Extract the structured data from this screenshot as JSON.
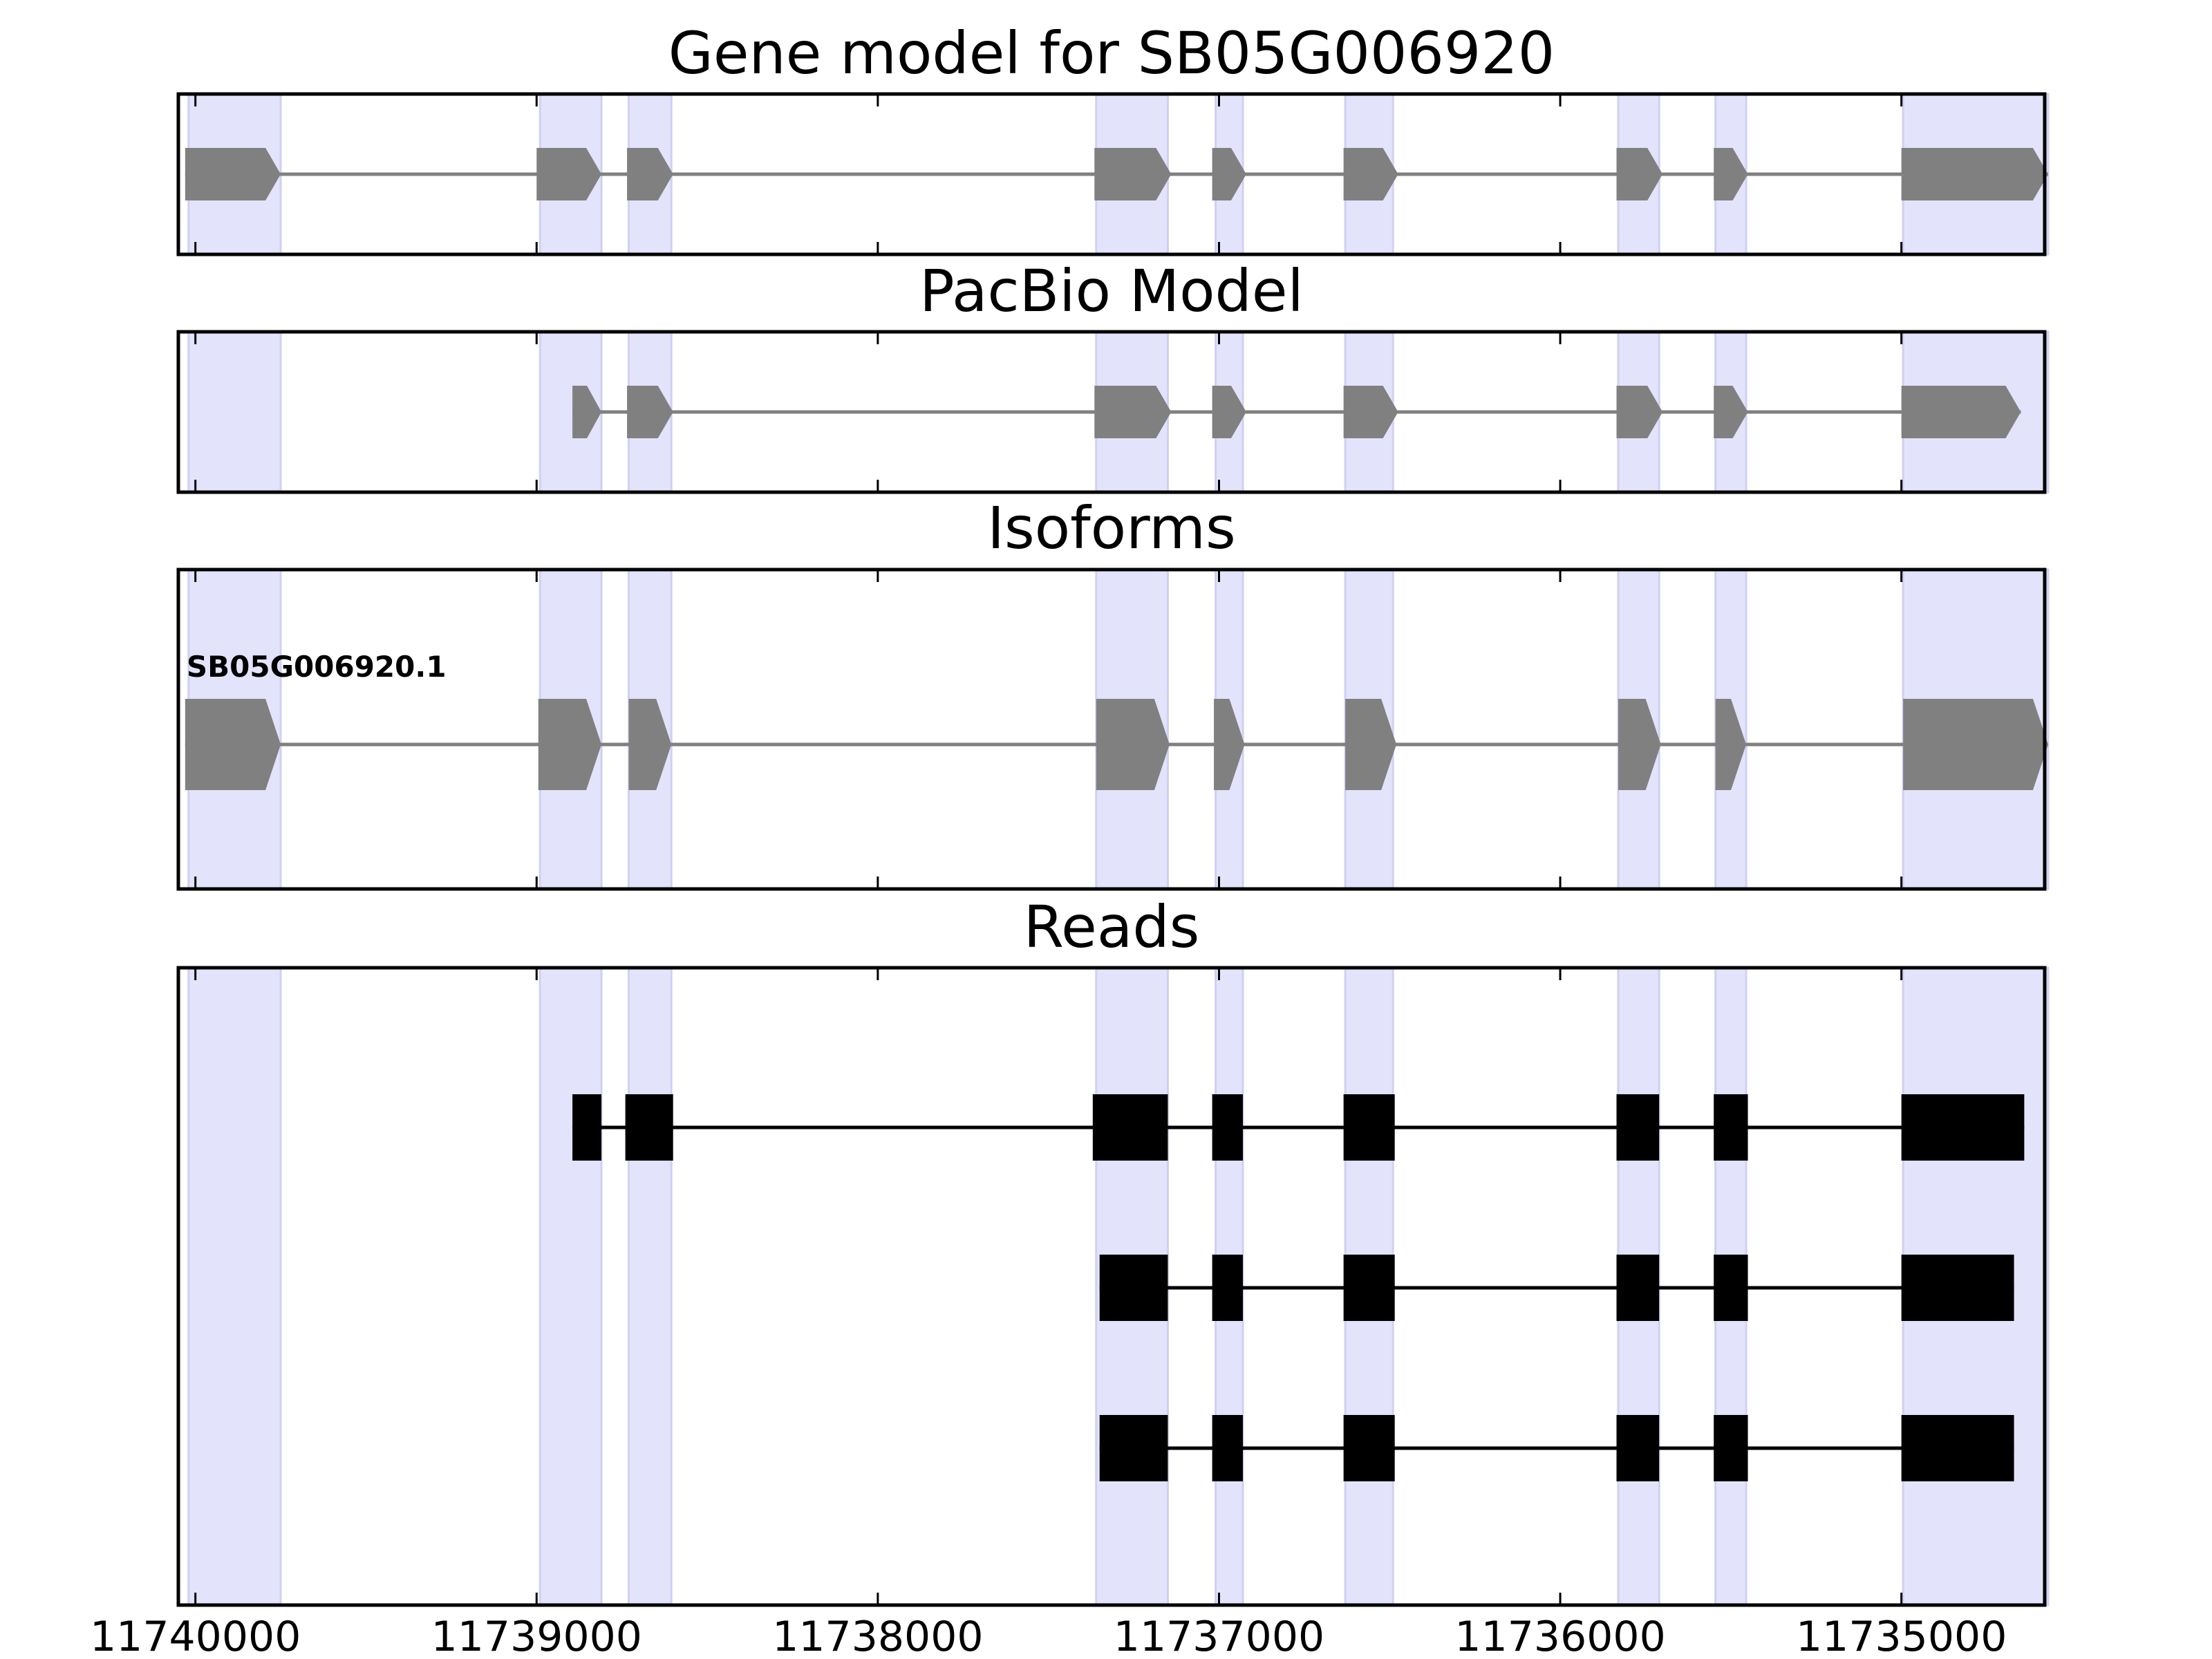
{
  "chart_data": {
    "type": "gene_model",
    "direction": "reverse",
    "xlim": [
      11740050,
      11734580
    ],
    "xticks": [
      {
        "value": 11740000,
        "label": "11740000"
      },
      {
        "value": 11739000,
        "label": "11739000"
      },
      {
        "value": 11738000,
        "label": "11738000"
      },
      {
        "value": 11737000,
        "label": "11737000"
      },
      {
        "value": 11736000,
        "label": "11736000"
      },
      {
        "value": 11735000,
        "label": "11735000"
      }
    ],
    "exon_regions": [
      [
        11740020,
        11739750
      ],
      [
        11738990,
        11738810
      ],
      [
        11738730,
        11738605
      ],
      [
        11737360,
        11737150
      ],
      [
        11737010,
        11736930
      ],
      [
        11736630,
        11736490
      ],
      [
        11735830,
        11735710
      ],
      [
        11735545,
        11735455
      ],
      [
        11734995,
        11734570
      ]
    ],
    "panels": [
      {
        "key": "gene_model",
        "title": "Gene model for SB05G006920",
        "color": "#808080",
        "style": "arrow",
        "tracks": [
          {
            "label": "",
            "exons": [
              [
                11740030,
                11739750
              ],
              [
                11739000,
                11738810
              ],
              [
                11738735,
                11738600
              ],
              [
                11737365,
                11737140
              ],
              [
                11737020,
                11736920
              ],
              [
                11736635,
                11736475
              ],
              [
                11735835,
                11735700
              ],
              [
                11735550,
                11735450
              ],
              [
                11735000,
                11734570
              ]
            ]
          }
        ]
      },
      {
        "key": "pacbio_model",
        "title": "PacBio Model",
        "color": "#808080",
        "style": "arrow",
        "tracks": [
          {
            "label": "",
            "exons": [
              [
                11738895,
                11738810
              ],
              [
                11738735,
                11738600
              ],
              [
                11737365,
                11737140
              ],
              [
                11737020,
                11736920
              ],
              [
                11736635,
                11736475
              ],
              [
                11735835,
                11735700
              ],
              [
                11735550,
                11735450
              ],
              [
                11735000,
                11734650
              ]
            ]
          }
        ]
      },
      {
        "key": "isoforms",
        "title": "Isoforms",
        "color": "#808080",
        "style": "arrow",
        "tracks": [
          {
            "label": "SB05G006920.1",
            "exons": [
              [
                11740030,
                11739750
              ],
              [
                11738995,
                11738810
              ],
              [
                11738730,
                11738605
              ],
              [
                11737360,
                11737145
              ],
              [
                11737015,
                11736925
              ],
              [
                11736630,
                11736480
              ],
              [
                11735830,
                11735705
              ],
              [
                11735545,
                11735455
              ],
              [
                11734995,
                11734570
              ]
            ]
          }
        ]
      },
      {
        "key": "reads",
        "title": "Reads",
        "color": "#000000",
        "style": "box",
        "tracks": [
          {
            "label": "",
            "exons": [
              [
                11738895,
                11738810
              ],
              [
                11738740,
                11738600
              ],
              [
                11737370,
                11737150
              ],
              [
                11737020,
                11736930
              ],
              [
                11736635,
                11736485
              ],
              [
                11735835,
                11735710
              ],
              [
                11735550,
                11735450
              ],
              [
                11735000,
                11734640
              ]
            ]
          },
          {
            "label": "",
            "exons": [
              [
                11737350,
                11737150
              ],
              [
                11737020,
                11736930
              ],
              [
                11736635,
                11736485
              ],
              [
                11735835,
                11735710
              ],
              [
                11735550,
                11735450
              ],
              [
                11735000,
                11734670
              ]
            ]
          },
          {
            "label": "",
            "exons": [
              [
                11737350,
                11737150
              ],
              [
                11737020,
                11736930
              ],
              [
                11736635,
                11736485
              ],
              [
                11735835,
                11735710
              ],
              [
                11735550,
                11735450
              ],
              [
                11735000,
                11734670
              ]
            ]
          }
        ]
      }
    ]
  }
}
